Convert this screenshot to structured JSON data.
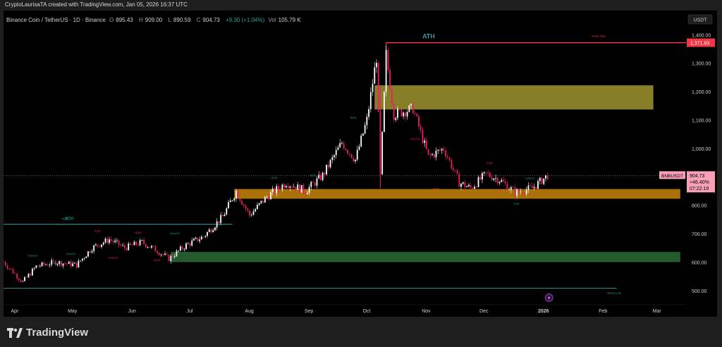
{
  "header": {
    "text": "CryptoLaurisaTA created with TradingView.com, Jan 05, 2026 16:37 UTC"
  },
  "symbol": {
    "name": "Binance Coin / TetherUS · 1D · Binance",
    "o_label": "O",
    "o": "895.43",
    "h_label": "H",
    "h": "909.00",
    "l_label": "L",
    "l": "890.59",
    "c_label": "C",
    "c": "904.73",
    "change": "+9.30 (+1.04%)",
    "vol_label": "Vol",
    "vol": "105.79 K"
  },
  "branding": {
    "logo_text": "TradingView",
    "icon": "tradingview-logo-icon"
  },
  "colors": {
    "background": "#000000",
    "up_candle": "#ffffff",
    "down_candle": "#e91e63",
    "ath_line": "#f23645",
    "ath_text": "#4dd0e1",
    "bos_line": "#26a69a",
    "supply_zone": "#a09431",
    "demand_zone_orange": "#c8850a",
    "demand_zone_green": "#2b6b34",
    "price_badge": "#f7a0b8"
  },
  "chart_data": {
    "type": "candlestick",
    "currency_label": "USDT",
    "y_ticks": [
      1400,
      1300,
      1200,
      1100,
      1000,
      800,
      700,
      600,
      500
    ],
    "y_tick_labels": [
      "1,400.00",
      "1,300.00",
      "1,200.00",
      "1,100.00",
      "1,000.00",
      "800.00",
      "700.00",
      "600.00",
      "500.00"
    ],
    "ylim": [
      440,
      1480
    ],
    "x_labels": [
      "Apr",
      "May",
      "Jun",
      "Jul",
      "Aug",
      "Sep",
      "Oct",
      "Nov",
      "Dec",
      "2026",
      "Feb",
      "Mar"
    ],
    "x_label_dates": [
      "2025-04-01",
      "2025-05-01",
      "2025-06-01",
      "2025-07-01",
      "2025-08-01",
      "2025-09-01",
      "2025-10-01",
      "2025-11-01",
      "2025-12-01",
      "2026-01-01",
      "2026-02-01",
      "2026-03-01"
    ],
    "price_path": [
      [
        "2025-03-28",
        600
      ],
      [
        "2025-04-07",
        530
      ],
      [
        "2025-04-14",
        585
      ],
      [
        "2025-04-24",
        600
      ],
      [
        "2025-05-05",
        590
      ],
      [
        "2025-05-13",
        650
      ],
      [
        "2025-05-22",
        680
      ],
      [
        "2025-05-30",
        650
      ],
      [
        "2025-06-08",
        670
      ],
      [
        "2025-06-16",
        640
      ],
      [
        "2025-06-22",
        612
      ],
      [
        "2025-07-01",
        660
      ],
      [
        "2025-07-10",
        690
      ],
      [
        "2025-07-20",
        760
      ],
      [
        "2025-07-27",
        850
      ],
      [
        "2025-08-03",
        765
      ],
      [
        "2025-08-12",
        830
      ],
      [
        "2025-08-22",
        880
      ],
      [
        "2025-09-01",
        850
      ],
      [
        "2025-09-10",
        905
      ],
      [
        "2025-09-20",
        1020
      ],
      [
        "2025-09-27",
        960
      ],
      [
        "2025-10-03",
        1100
      ],
      [
        "2025-10-08",
        1320
      ],
      [
        "2025-10-10",
        900
      ],
      [
        "2025-10-13",
        1330
      ],
      [
        "2025-10-17",
        1120
      ],
      [
        "2025-10-27",
        1140
      ],
      [
        "2025-11-04",
        970
      ],
      [
        "2025-11-12",
        1000
      ],
      [
        "2025-11-20",
        880
      ],
      [
        "2025-11-26",
        860
      ],
      [
        "2025-12-04",
        910
      ],
      [
        "2025-12-11",
        890
      ],
      [
        "2025-12-19",
        845
      ],
      [
        "2025-12-28",
        860
      ],
      [
        "2026-01-05",
        905
      ]
    ],
    "ath": {
      "label": "ATH",
      "value": 1371.93,
      "value_label": "1,371.93",
      "start_date": "2025-10-13",
      "tag": "Weak High"
    },
    "zones": [
      {
        "name": "supply",
        "top": 1222,
        "bottom": 1137,
        "start_date": "2025-10-07",
        "end_date": "2026-03-01",
        "color": "#a09431"
      },
      {
        "name": "demand-orange",
        "top": 857,
        "bottom": 823,
        "start_date": "2025-07-26",
        "end_date": "2026-03-15",
        "color": "#c8850a"
      },
      {
        "name": "demand-green",
        "top": 636,
        "bottom": 600,
        "start_date": "2025-06-23",
        "end_date": "2026-03-15",
        "color": "#2b6b34"
      }
    ],
    "bos_line": {
      "label": "BOS",
      "value": 733,
      "start_date": "2025-03-28",
      "end_date": "2025-07-25"
    },
    "strong_low": {
      "label": "Strong Low",
      "value": 508,
      "start_date": "2025-03-28",
      "end_date": "2026-02-10"
    },
    "current_price": {
      "symbol": "BNBUSDT",
      "value": 904.73,
      "value_label": "904.73",
      "change": "+46.40%",
      "countdown": "07:22:19"
    },
    "annotations": [
      {
        "text": "BOS",
        "date": "2025-04-29",
        "value": 750,
        "color": "#26a69a"
      },
      {
        "text": "CHoCH",
        "date": "2025-04-12",
        "value": 620,
        "color": "#26a69a"
      },
      {
        "text": "CHoCH",
        "date": "2025-05-02",
        "value": 626,
        "color": "#26a69a"
      },
      {
        "text": "CHoCH",
        "date": "2025-04-24",
        "value": 594,
        "color": "#26a69a"
      },
      {
        "text": "EQH",
        "date": "2025-05-16",
        "value": 706,
        "color": "#f23645"
      },
      {
        "text": "EQH",
        "date": "2025-06-06",
        "value": 700,
        "color": "#f23645"
      },
      {
        "text": "CHoCH",
        "date": "2025-06-25",
        "value": 698,
        "color": "#26a69a"
      },
      {
        "text": "CHoCH",
        "date": "2025-05-24",
        "value": 612,
        "color": "#f23645"
      },
      {
        "text": "BOS",
        "date": "2025-06-16",
        "value": 603,
        "color": "#f23645"
      },
      {
        "text": "BOS",
        "date": "2025-08-16",
        "value": 893,
        "color": "#26a69a"
      },
      {
        "text": "BOS",
        "date": "2025-09-05",
        "value": 902,
        "color": "#26a69a"
      },
      {
        "text": "BOS",
        "date": "2025-09-26",
        "value": 1105,
        "color": "#26a69a"
      },
      {
        "text": "CHoCH",
        "date": "2025-10-28",
        "value": 1030,
        "color": "#f23645"
      },
      {
        "text": "BOS",
        "date": "2025-11-08",
        "value": 855,
        "color": "#f23645"
      },
      {
        "text": "EQH",
        "date": "2025-12-06",
        "value": 945,
        "color": "#f23645"
      },
      {
        "text": "BOS",
        "date": "2025-12-11",
        "value": 845,
        "color": "#f23645"
      },
      {
        "text": "CHoCH",
        "date": "2025-12-27",
        "value": 892,
        "color": "#26a69a"
      },
      {
        "text": "EQL",
        "date": "2025-12-20",
        "value": 803,
        "color": "#26a69a"
      }
    ]
  }
}
